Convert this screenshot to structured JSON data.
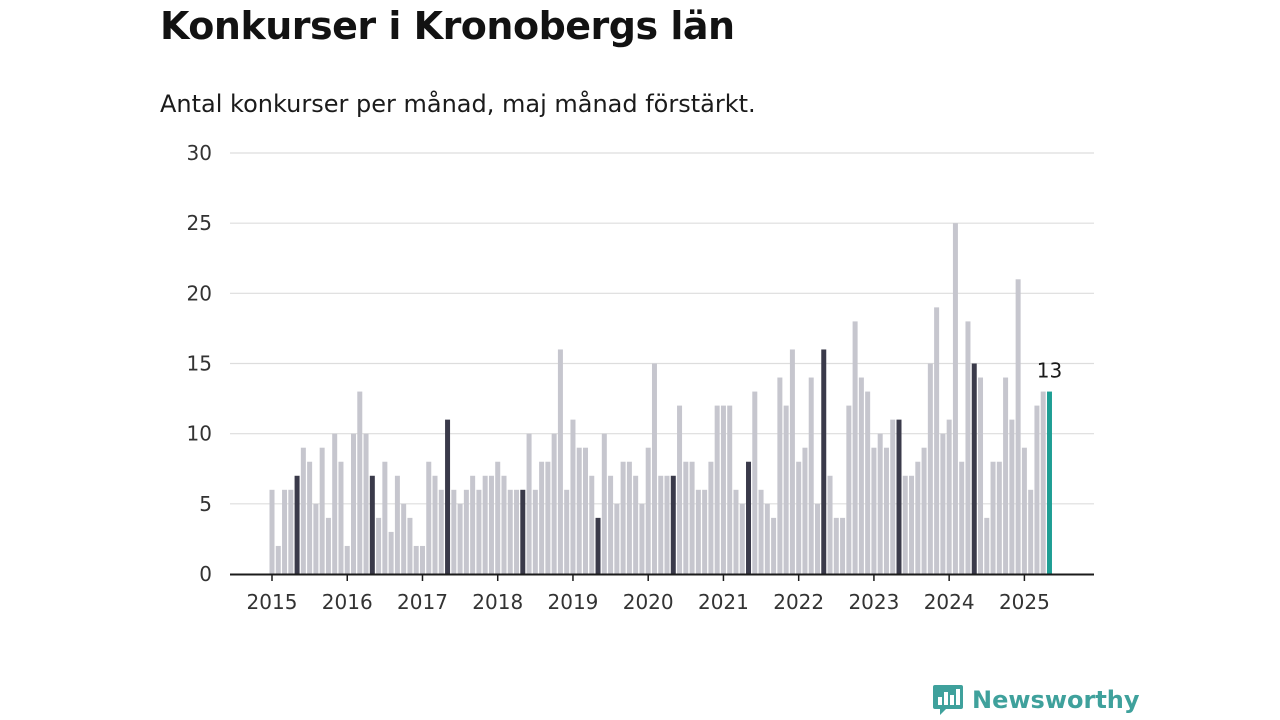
{
  "title": "Konkurser i Kronobergs län",
  "subtitle": "Antal konkurser per månad, maj månad förstärkt.",
  "brand": {
    "name": "Newsworthy",
    "color": "#3fa19c",
    "icon": "bar-chart-speech-bubble-icon"
  },
  "chart_data": {
    "type": "bar",
    "ylim": [
      0,
      30
    ],
    "yticks": [
      0,
      5,
      10,
      15,
      20,
      25,
      30
    ],
    "xtick_labels": [
      "2015",
      "2016",
      "2017",
      "2018",
      "2019",
      "2020",
      "2021",
      "2022",
      "2023",
      "2024",
      "2025"
    ],
    "grid": true,
    "start_month": "2015-01",
    "colors": {
      "default": "#c6c6ce",
      "may": "#3a3a4a",
      "latest": "#1e9e94",
      "grid": "#dddddd",
      "axis": "#1b1b1b"
    },
    "latest_label": "13",
    "series": [
      {
        "year": "2015",
        "values": [
          6,
          2,
          6,
          6,
          7,
          9,
          8,
          5,
          9,
          4,
          10,
          8
        ]
      },
      {
        "year": "2016",
        "values": [
          2,
          10,
          13,
          10,
          7,
          4,
          8,
          3,
          7,
          5,
          4,
          2
        ]
      },
      {
        "year": "2017",
        "values": [
          2,
          8,
          7,
          6,
          11,
          6,
          5,
          6,
          7,
          6,
          7,
          7
        ]
      },
      {
        "year": "2018",
        "values": [
          8,
          7,
          6,
          6,
          6,
          10,
          6,
          8,
          8,
          10,
          16,
          6
        ]
      },
      {
        "year": "2019",
        "values": [
          11,
          9,
          9,
          7,
          4,
          10,
          7,
          5,
          8,
          8,
          7,
          5
        ]
      },
      {
        "year": "2020",
        "values": [
          9,
          15,
          7,
          7,
          7,
          12,
          8,
          8,
          6,
          6,
          8,
          12
        ]
      },
      {
        "year": "2021",
        "values": [
          12,
          12,
          6,
          5,
          8,
          13,
          6,
          5,
          4,
          14,
          12,
          16
        ]
      },
      {
        "year": "2022",
        "values": [
          8,
          9,
          14,
          5,
          16,
          7,
          4,
          4,
          12,
          18,
          14,
          13
        ]
      },
      {
        "year": "2023",
        "values": [
          9,
          10,
          9,
          11,
          11,
          7,
          7,
          8,
          9,
          15,
          19,
          10
        ]
      },
      {
        "year": "2024",
        "values": [
          11,
          25,
          8,
          18,
          15,
          14,
          4,
          8,
          8,
          14,
          11,
          21
        ]
      },
      {
        "year": "2025",
        "values": [
          9,
          6,
          12,
          13,
          13
        ]
      }
    ]
  }
}
